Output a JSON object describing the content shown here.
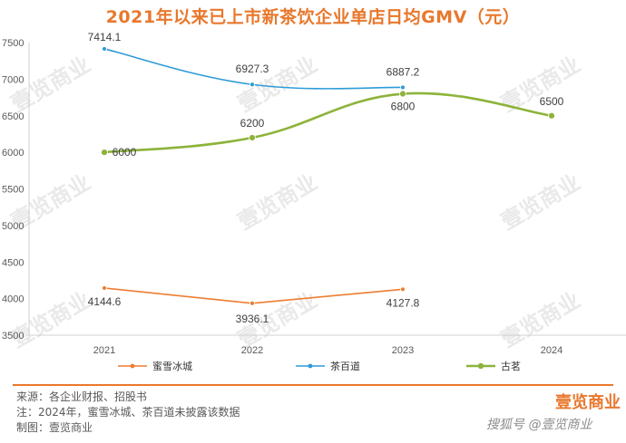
{
  "chart_data": {
    "type": "line",
    "title": "2021年以来已上市新茶饮企业单店日均GMV（元）",
    "categories": [
      "2021",
      "2022",
      "2023",
      "2024"
    ],
    "ylim": [
      3500,
      7500
    ],
    "yticks": [
      3500,
      4000,
      4500,
      5000,
      5500,
      6000,
      6500,
      7000,
      7500
    ],
    "grid": false,
    "legend_position": "bottom",
    "series": [
      {
        "name": "蜜雪冰城",
        "color": "#ED7D31",
        "values": [
          4144.6,
          3936.1,
          4127.8,
          null
        ],
        "labels": [
          "4144.6",
          "3936.1",
          "4127.8",
          null
        ],
        "style": "straight"
      },
      {
        "name": "茶百道",
        "color": "#2E9BD7",
        "values": [
          7414.1,
          6927.3,
          6887.2,
          null
        ],
        "labels": [
          "7414.1",
          "6927.3",
          "6887.2",
          null
        ],
        "style": "smooth"
      },
      {
        "name": "古茗",
        "color": "#8DB33A",
        "values": [
          6000,
          6200,
          6800,
          6500
        ],
        "labels": [
          "6000",
          "6200",
          "6800",
          "6500"
        ],
        "style": "smooth"
      }
    ]
  },
  "footer": {
    "source": "来源：各企业财报、招股书",
    "note": "注：2024年，蜜雪冰城、茶百道未披露该数据",
    "maker": "制图：壹览商业",
    "brand": "壹览商业",
    "watermark": "搜狐号 @壹览商业"
  },
  "watermark_text": "壹览商业"
}
